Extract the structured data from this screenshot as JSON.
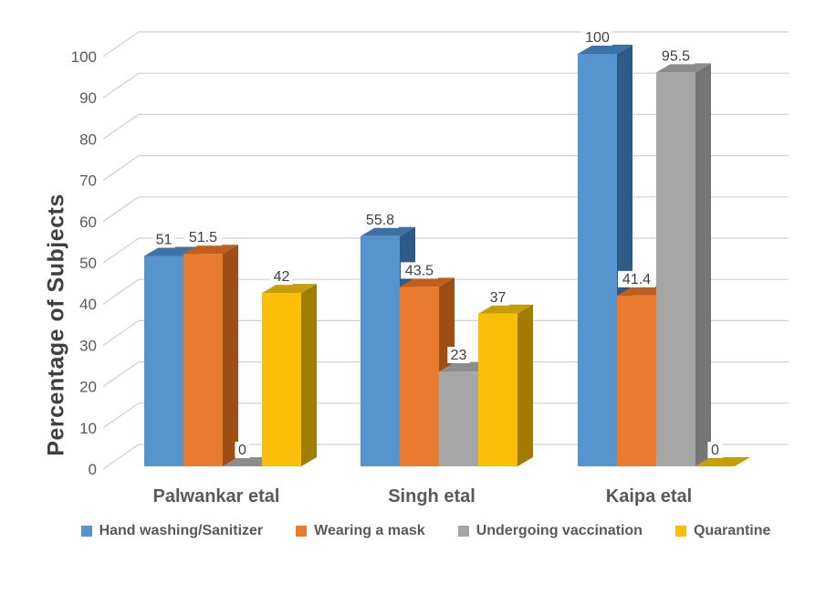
{
  "chart_data": {
    "type": "bar",
    "variant": "3d-clustered-column",
    "title": "",
    "xlabel": "",
    "ylabel": "Percentage of Subjects",
    "categories": [
      "Palwankar etal",
      "Singh etal",
      "Kaipa etal"
    ],
    "series": [
      {
        "name": "Hand washing/Sanitizer",
        "values": [
          51,
          55.8,
          100
        ],
        "labels": [
          "51",
          "55.8",
          "100"
        ],
        "color": "#5594CE",
        "color_top": "#3E72A6",
        "color_side": "#2E5B87"
      },
      {
        "name": "Wearing a mask",
        "values": [
          51.5,
          43.5,
          41.4
        ],
        "labels": [
          "51.5",
          "43.5",
          "41.4"
        ],
        "color": "#E87B2E",
        "color_top": "#C05F1D",
        "color_side": "#9E4E15"
      },
      {
        "name": "Undergoing vaccination",
        "values": [
          0,
          23,
          95.5
        ],
        "labels": [
          "0",
          "23",
          "95.5"
        ],
        "color": "#A6A6A6",
        "color_top": "#8C8C8C",
        "color_side": "#757575"
      },
      {
        "name": "Quarantine",
        "values": [
          42,
          37,
          0
        ],
        "labels": [
          "42",
          "37",
          "0"
        ],
        "color": "#FBBE07",
        "color_top": "#C79E06",
        "color_side": "#A07C00"
      }
    ],
    "y_axis": {
      "min": 0,
      "max": 100,
      "step": 10,
      "tick_labels": [
        "0",
        "10",
        "20",
        "30",
        "40",
        "50",
        "60",
        "70",
        "80",
        "90",
        "100"
      ]
    },
    "grid": true,
    "legend_position": "bottom",
    "colors": {
      "gridline": "#D0D0D0",
      "tick_text": "#595959",
      "data_label_text": "#404040",
      "data_label_bg": "#FFFFFF",
      "category_text": "#595959",
      "background": "#FFFFFF"
    }
  }
}
